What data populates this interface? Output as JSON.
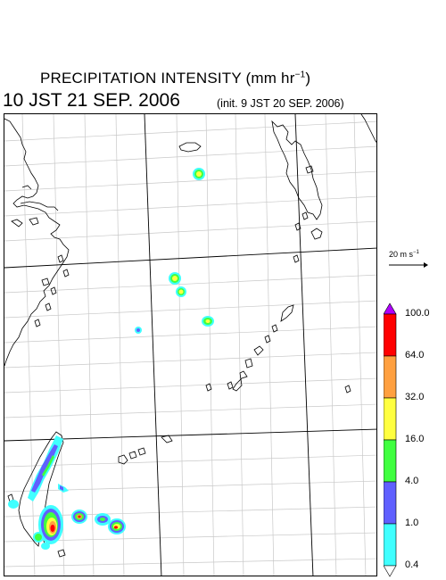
{
  "header": {
    "title": "PRECIPITATION INTENSITY (mm hr",
    "title_sup": "−1",
    "title_close": ")",
    "valid_time": "10 JST 21 SEP. 2006",
    "init_time": "(init. 9 JST 20 SEP. 2006)"
  },
  "vector_legend": {
    "label": "20 m s",
    "label_sup": "−1"
  },
  "colorbar": {
    "labels": [
      "100.0",
      "64.0",
      "32.0",
      "16.0",
      "4.0",
      "1.0",
      "0.4"
    ],
    "colors": [
      "#ff0000",
      "#ffa040",
      "#ffff40",
      "#40ff40",
      "#6060ff",
      "#40ffff"
    ],
    "top_color": "#b000ff",
    "bottom_color": "#ffffff"
  }
}
